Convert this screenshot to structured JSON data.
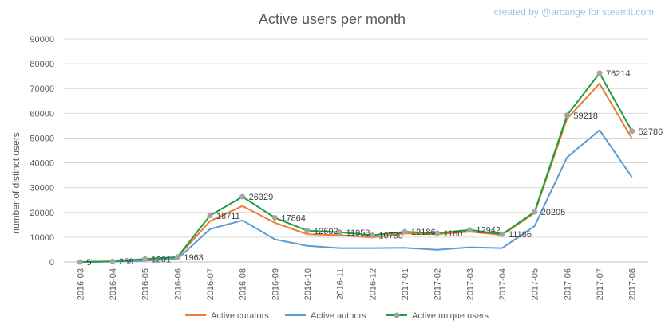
{
  "credit": "created by @arcange for steemit.com",
  "chart_data": {
    "type": "line",
    "title": "Active users per month",
    "xlabel": "",
    "ylabel": "number of distinct users",
    "ylim": [
      0,
      90000
    ],
    "yticks": [
      0,
      10000,
      20000,
      30000,
      40000,
      50000,
      60000,
      70000,
      80000,
      90000
    ],
    "grid": true,
    "legend_position": "bottom",
    "categories": [
      "2016-03",
      "2016-04",
      "2016-05",
      "2016-06",
      "2016-07",
      "2016-08",
      "2016-09",
      "2016-10",
      "2016-11",
      "2016-12",
      "2017-01",
      "2017-02",
      "2017-03",
      "2017-04",
      "2017-05",
      "2017-06",
      "2017-07",
      "2017-08"
    ],
    "series": [
      {
        "name": "Active curators",
        "color": "#ed7d31",
        "markers": false,
        "values": [
          5,
          250,
          1150,
          1900,
          16500,
          22600,
          15800,
          11200,
          10800,
          9900,
          11500,
          11200,
          12200,
          10900,
          19800,
          57800,
          72000,
          49800
        ]
      },
      {
        "name": "Active authors",
        "color": "#5b9bd5",
        "markers": false,
        "values": [
          5,
          120,
          500,
          1200,
          13200,
          16800,
          9100,
          6500,
          5600,
          5600,
          5700,
          4900,
          5900,
          5600,
          14500,
          42200,
          53200,
          34200
        ]
      },
      {
        "name": "Active unique users",
        "color": "#1e9e3e",
        "markers": true,
        "values": [
          5,
          259,
          1201,
          1963,
          18711,
          26329,
          17864,
          12602,
          11958,
          10780,
          12186,
          11601,
          12942,
          11186,
          20205,
          59218,
          76214,
          52786
        ]
      }
    ],
    "data_labels": [
      "5",
      "259",
      "1201",
      "1963",
      "18711",
      "26329",
      "17864",
      "12602",
      "11958",
      "10780",
      "12186",
      "11601",
      "12942",
      "11186",
      "20205",
      "59218",
      "76214",
      "52786"
    ]
  }
}
